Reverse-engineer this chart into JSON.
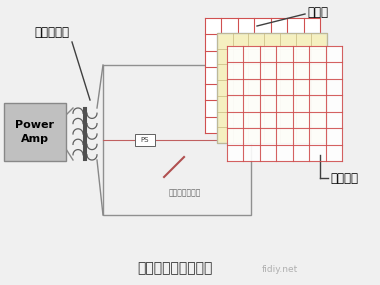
{
  "bg_color": "#f0f0f0",
  "title": "静电扬声器工作原理",
  "watermark": "fidiy.net",
  "label_yinpin": "音频驱动器",
  "label_power": "Power\nAmp",
  "label_fayinmo": "发音膜",
  "label_xinhaojiban": "信号极板",
  "label_jingdian": "静电荷充电电路",
  "label_PS": "PS",
  "colors": {
    "grid_red": "#d05050",
    "grid_yellow_fill": "#f5f0c0",
    "grid_yellow_edge": "#c8b880",
    "grid_blue_border": "#aabbcc",
    "line_color": "#888888",
    "box_fill": "#c0c0c0",
    "box_edge": "#888888",
    "text_dark": "#303030",
    "text_mid": "#606060",
    "ps_line": "#c06060"
  }
}
